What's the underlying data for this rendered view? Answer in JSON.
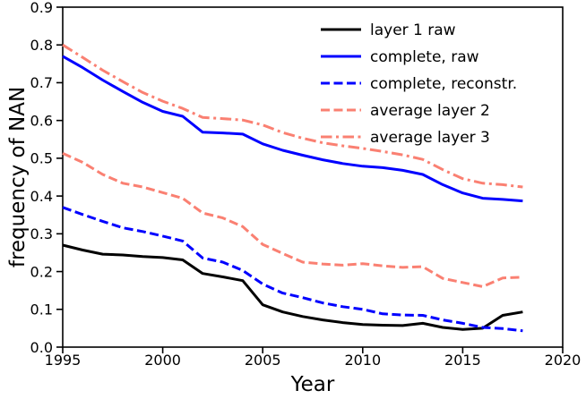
{
  "chart_data": {
    "type": "line",
    "title": "",
    "xlabel": "Year",
    "ylabel": "frequency of NAN",
    "xlim": [
      1995,
      2020
    ],
    "ylim": [
      0.0,
      0.9
    ],
    "xticks": [
      1995,
      2000,
      2005,
      2010,
      2015,
      2020
    ],
    "yticks": [
      0.0,
      0.1,
      0.2,
      0.3,
      0.4,
      0.5,
      0.6,
      0.7,
      0.8,
      0.9
    ],
    "ytick_labels": [
      "0.0",
      "0.1",
      "0.2",
      "0.3",
      "0.4",
      "0.5",
      "0.6",
      "0.7",
      "0.8",
      "0.9"
    ],
    "grid": false,
    "legend_position": "upper right",
    "x": [
      1995,
      1996,
      1997,
      1998,
      1999,
      2000,
      2001,
      2002,
      2003,
      2004,
      2005,
      2006,
      2007,
      2008,
      2009,
      2010,
      2011,
      2012,
      2013,
      2014,
      2015,
      2016,
      2017,
      2018
    ],
    "series": [
      {
        "name": "layer 1 raw",
        "color": "#000000",
        "linestyle": "solid",
        "values": [
          0.27,
          0.257,
          0.246,
          0.244,
          0.24,
          0.237,
          0.231,
          0.195,
          0.186,
          0.176,
          0.112,
          0.093,
          0.081,
          0.072,
          0.065,
          0.06,
          0.058,
          0.057,
          0.063,
          0.052,
          0.047,
          0.05,
          0.084,
          0.093
        ]
      },
      {
        "name": "complete, raw",
        "color": "#0000ff",
        "linestyle": "solid",
        "values": [
          0.77,
          0.74,
          0.707,
          0.677,
          0.648,
          0.624,
          0.611,
          0.569,
          0.567,
          0.564,
          0.538,
          0.521,
          0.508,
          0.496,
          0.486,
          0.479,
          0.475,
          0.468,
          0.457,
          0.43,
          0.408,
          0.394,
          0.391,
          0.387
        ]
      },
      {
        "name": "complete, reconstr.",
        "color": "#0000ff",
        "linestyle": "dashed",
        "values": [
          0.37,
          0.351,
          0.333,
          0.316,
          0.306,
          0.294,
          0.281,
          0.236,
          0.225,
          0.203,
          0.167,
          0.143,
          0.131,
          0.117,
          0.107,
          0.1,
          0.088,
          0.085,
          0.084,
          0.072,
          0.063,
          0.052,
          0.049,
          0.043
        ]
      },
      {
        "name": "average layer 2",
        "color": "#fa8072",
        "linestyle": "dashed",
        "values": [
          0.513,
          0.489,
          0.457,
          0.434,
          0.424,
          0.409,
          0.394,
          0.355,
          0.342,
          0.319,
          0.272,
          0.248,
          0.225,
          0.22,
          0.217,
          0.221,
          0.215,
          0.211,
          0.213,
          0.182,
          0.171,
          0.16,
          0.183,
          0.185
        ]
      },
      {
        "name": "average layer 3",
        "color": "#fa8072",
        "linestyle": "dashdot",
        "values": [
          0.8,
          0.767,
          0.733,
          0.703,
          0.674,
          0.651,
          0.632,
          0.608,
          0.605,
          0.601,
          0.588,
          0.568,
          0.553,
          0.541,
          0.533,
          0.526,
          0.518,
          0.509,
          0.497,
          0.47,
          0.446,
          0.434,
          0.43,
          0.424
        ]
      }
    ]
  }
}
